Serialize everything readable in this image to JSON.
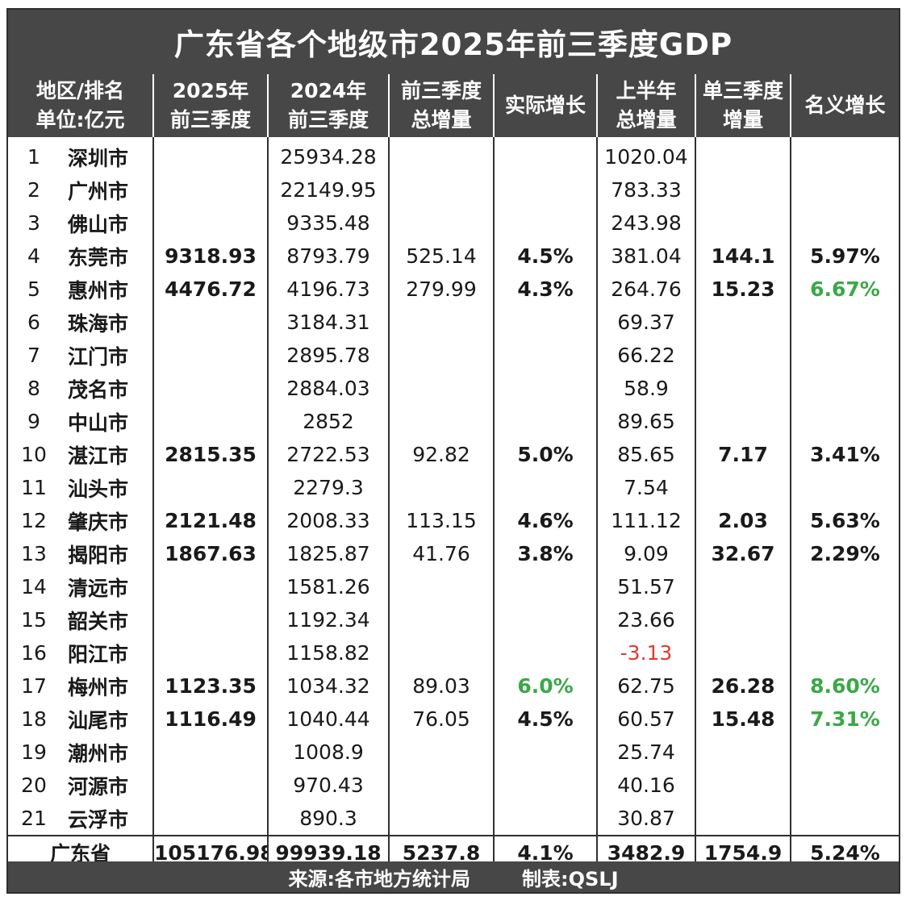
{
  "title": "广东省各个地级市2025年前三季度GDP",
  "headers": [
    [
      "地区/排名",
      "单位:亿元"
    ],
    [
      "2025年",
      "前三季度"
    ],
    [
      "2024年",
      "前三季度"
    ],
    [
      "前三季度",
      "总增量"
    ],
    [
      "实际增长"
    ],
    [
      "上半年",
      "总增量"
    ],
    [
      "单三季度",
      "增量"
    ],
    [
      "名义增长"
    ]
  ],
  "rows": [
    {
      "rank": "1",
      "city": "深圳市",
      "gdp2025": "",
      "gdp2024": "25934.28",
      "increase": "",
      "real_growth": "",
      "h1_increase": "1020.04",
      "q3_increase": "",
      "nominal_growth": ""
    },
    {
      "rank": "2",
      "city": "广州市",
      "gdp2025": "",
      "gdp2024": "22149.95",
      "increase": "",
      "real_growth": "",
      "h1_increase": "783.33",
      "q3_increase": "",
      "nominal_growth": ""
    },
    {
      "rank": "3",
      "city": "佛山市",
      "gdp2025": "",
      "gdp2024": "9335.48",
      "increase": "",
      "real_growth": "",
      "h1_increase": "243.98",
      "q3_increase": "",
      "nominal_growth": ""
    },
    {
      "rank": "4",
      "city": "东莞市",
      "gdp2025": "9318.93",
      "gdp2024": "8793.79",
      "increase": "525.14",
      "real_growth": "4.5%",
      "h1_increase": "381.04",
      "q3_increase": "144.1",
      "nominal_growth": "5.97%"
    },
    {
      "rank": "5",
      "city": "惠州市",
      "gdp2025": "4476.72",
      "gdp2024": "4196.73",
      "increase": "279.99",
      "real_growth": "4.3%",
      "h1_increase": "264.76",
      "q3_increase": "15.23",
      "nominal_growth": "6.67%"
    },
    {
      "rank": "6",
      "city": "珠海市",
      "gdp2025": "",
      "gdp2024": "3184.31",
      "increase": "",
      "real_growth": "",
      "h1_increase": "69.37",
      "q3_increase": "",
      "nominal_growth": ""
    },
    {
      "rank": "7",
      "city": "江门市",
      "gdp2025": "",
      "gdp2024": "2895.78",
      "increase": "",
      "real_growth": "",
      "h1_increase": "66.22",
      "q3_increase": "",
      "nominal_growth": ""
    },
    {
      "rank": "8",
      "city": "茂名市",
      "gdp2025": "",
      "gdp2024": "2884.03",
      "increase": "",
      "real_growth": "",
      "h1_increase": "58.9",
      "q3_increase": "",
      "nominal_growth": ""
    },
    {
      "rank": "9",
      "city": "中山市",
      "gdp2025": "",
      "gdp2024": "2852",
      "increase": "",
      "real_growth": "",
      "h1_increase": "89.65",
      "q3_increase": "",
      "nominal_growth": ""
    },
    {
      "rank": "10",
      "city": "湛江市",
      "gdp2025": "2815.35",
      "gdp2024": "2722.53",
      "increase": "92.82",
      "real_growth": "5.0%",
      "h1_increase": "85.65",
      "q3_increase": "7.17",
      "nominal_growth": "3.41%"
    },
    {
      "rank": "11",
      "city": "汕头市",
      "gdp2025": "",
      "gdp2024": "2279.3",
      "increase": "",
      "real_growth": "",
      "h1_increase": "7.54",
      "q3_increase": "",
      "nominal_growth": ""
    },
    {
      "rank": "12",
      "city": "肇庆市",
      "gdp2025": "2121.48",
      "gdp2024": "2008.33",
      "increase": "113.15",
      "real_growth": "4.6%",
      "h1_increase": "111.12",
      "q3_increase": "2.03",
      "nominal_growth": "5.63%"
    },
    {
      "rank": "13",
      "city": "揭阳市",
      "gdp2025": "1867.63",
      "gdp2024": "1825.87",
      "increase": "41.76",
      "real_growth": "3.8%",
      "h1_increase": "9.09",
      "q3_increase": "32.67",
      "nominal_growth": "2.29%"
    },
    {
      "rank": "14",
      "city": "清远市",
      "gdp2025": "",
      "gdp2024": "1581.26",
      "increase": "",
      "real_growth": "",
      "h1_increase": "51.57",
      "q3_increase": "",
      "nominal_growth": ""
    },
    {
      "rank": "15",
      "city": "韶关市",
      "gdp2025": "",
      "gdp2024": "1192.34",
      "increase": "",
      "real_growth": "",
      "h1_increase": "23.66",
      "q3_increase": "",
      "nominal_growth": ""
    },
    {
      "rank": "16",
      "city": "阳江市",
      "gdp2025": "",
      "gdp2024": "1158.82",
      "increase": "",
      "real_growth": "",
      "h1_increase": "-3.13",
      "q3_increase": "",
      "nominal_growth": ""
    },
    {
      "rank": "17",
      "city": "梅州市",
      "gdp2025": "1123.35",
      "gdp2024": "1034.32",
      "increase": "89.03",
      "real_growth": "6.0%",
      "h1_increase": "62.75",
      "q3_increase": "26.28",
      "nominal_growth": "8.60%"
    },
    {
      "rank": "18",
      "city": "汕尾市",
      "gdp2025": "1116.49",
      "gdp2024": "1040.44",
      "increase": "76.05",
      "real_growth": "4.5%",
      "h1_increase": "60.57",
      "q3_increase": "15.48",
      "nominal_growth": "7.31%"
    },
    {
      "rank": "19",
      "city": "潮州市",
      "gdp2025": "",
      "gdp2024": "1008.9",
      "increase": "",
      "real_growth": "",
      "h1_increase": "25.74",
      "q3_increase": "",
      "nominal_growth": ""
    },
    {
      "rank": "20",
      "city": "河源市",
      "gdp2025": "",
      "gdp2024": "970.43",
      "increase": "",
      "real_growth": "",
      "h1_increase": "40.16",
      "q3_increase": "",
      "nominal_growth": ""
    },
    {
      "rank": "21",
      "city": "云浮市",
      "gdp2025": "",
      "gdp2024": "890.3",
      "increase": "",
      "real_growth": "",
      "h1_increase": "30.87",
      "q3_increase": "",
      "nominal_growth": ""
    }
  ],
  "total": {
    "label": "广东省",
    "gdp2025": "105176.98",
    "gdp2024": "99939.18",
    "increase": "5237.8",
    "real_growth": "4.1%",
    "h1_increase": "3482.9",
    "q3_increase": "1754.9",
    "nominal_growth": "5.24%"
  },
  "footer": {
    "source": "来源:各市地方统计局",
    "maker": "制表:QSLJ"
  },
  "colors": {
    "header_bg": "#474747",
    "highlight_green": "#3aa847",
    "negative_red": "#e03a2e"
  }
}
